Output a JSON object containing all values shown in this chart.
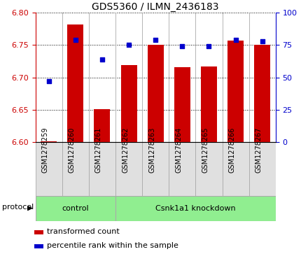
{
  "title": "GDS5360 / ILMN_2436183",
  "samples": [
    "GSM1278259",
    "GSM1278260",
    "GSM1278261",
    "GSM1278262",
    "GSM1278263",
    "GSM1278264",
    "GSM1278265",
    "GSM1278266",
    "GSM1278267"
  ],
  "transformed_count": [
    6.601,
    6.782,
    6.651,
    6.719,
    6.75,
    6.716,
    6.717,
    6.757,
    6.75
  ],
  "percentile_rank": [
    47,
    79,
    64,
    75,
    79,
    74,
    74,
    79,
    78
  ],
  "ylim_left": [
    6.6,
    6.8
  ],
  "ylim_right": [
    0,
    100
  ],
  "yticks_left": [
    6.6,
    6.65,
    6.7,
    6.75,
    6.8
  ],
  "yticks_right": [
    0,
    25,
    50,
    75,
    100
  ],
  "bar_color": "#cc0000",
  "dot_color": "#0000cc",
  "bar_width": 0.6,
  "control_indices": [
    0,
    1,
    2
  ],
  "knockdown_indices": [
    3,
    4,
    5,
    6,
    7,
    8
  ],
  "control_label": "control",
  "knockdown_label": "Csnk1a1 knockdown",
  "group_color": "#90ee90",
  "protocol_label": "protocol",
  "legend_bar_label": "transformed count",
  "legend_dot_label": "percentile rank within the sample",
  "background_color": "#ffffff",
  "cell_color": "#e0e0e0",
  "title_fontsize": 10,
  "tick_fontsize": 7,
  "legend_fontsize": 8
}
